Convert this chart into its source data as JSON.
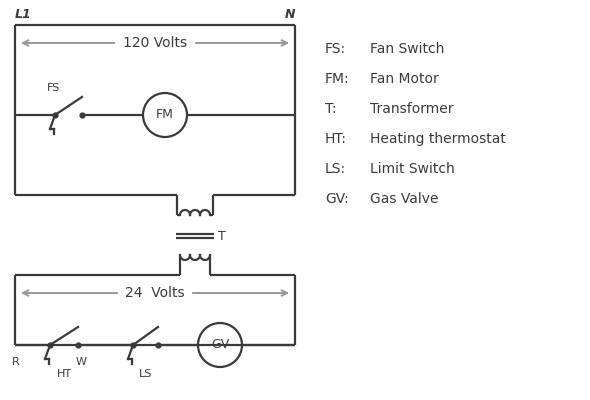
{
  "bg_color": "#ffffff",
  "line_color": "#3a3a3a",
  "gray_arrow_color": "#999999",
  "legend": [
    [
      "FS:",
      "Fan Switch"
    ],
    [
      "FM:",
      "Fan Motor"
    ],
    [
      "T:",
      "Transformer"
    ],
    [
      "HT:",
      "Heating thermostat"
    ],
    [
      "LS:",
      "Limit Switch"
    ],
    [
      "GV:",
      "Gas Valve"
    ]
  ],
  "L1_label": "L1",
  "N_label": "N",
  "volts120_label": "120 Volts",
  "volts24_label": "24  Volts",
  "T_label": "T",
  "R_label": "R",
  "W_label": "W",
  "HT_label": "HT",
  "LS_label": "LS",
  "FS_label": "FS",
  "FM_label": "FM",
  "GV_label": "GV",
  "figw": 5.9,
  "figh": 4.0,
  "dpi": 100
}
